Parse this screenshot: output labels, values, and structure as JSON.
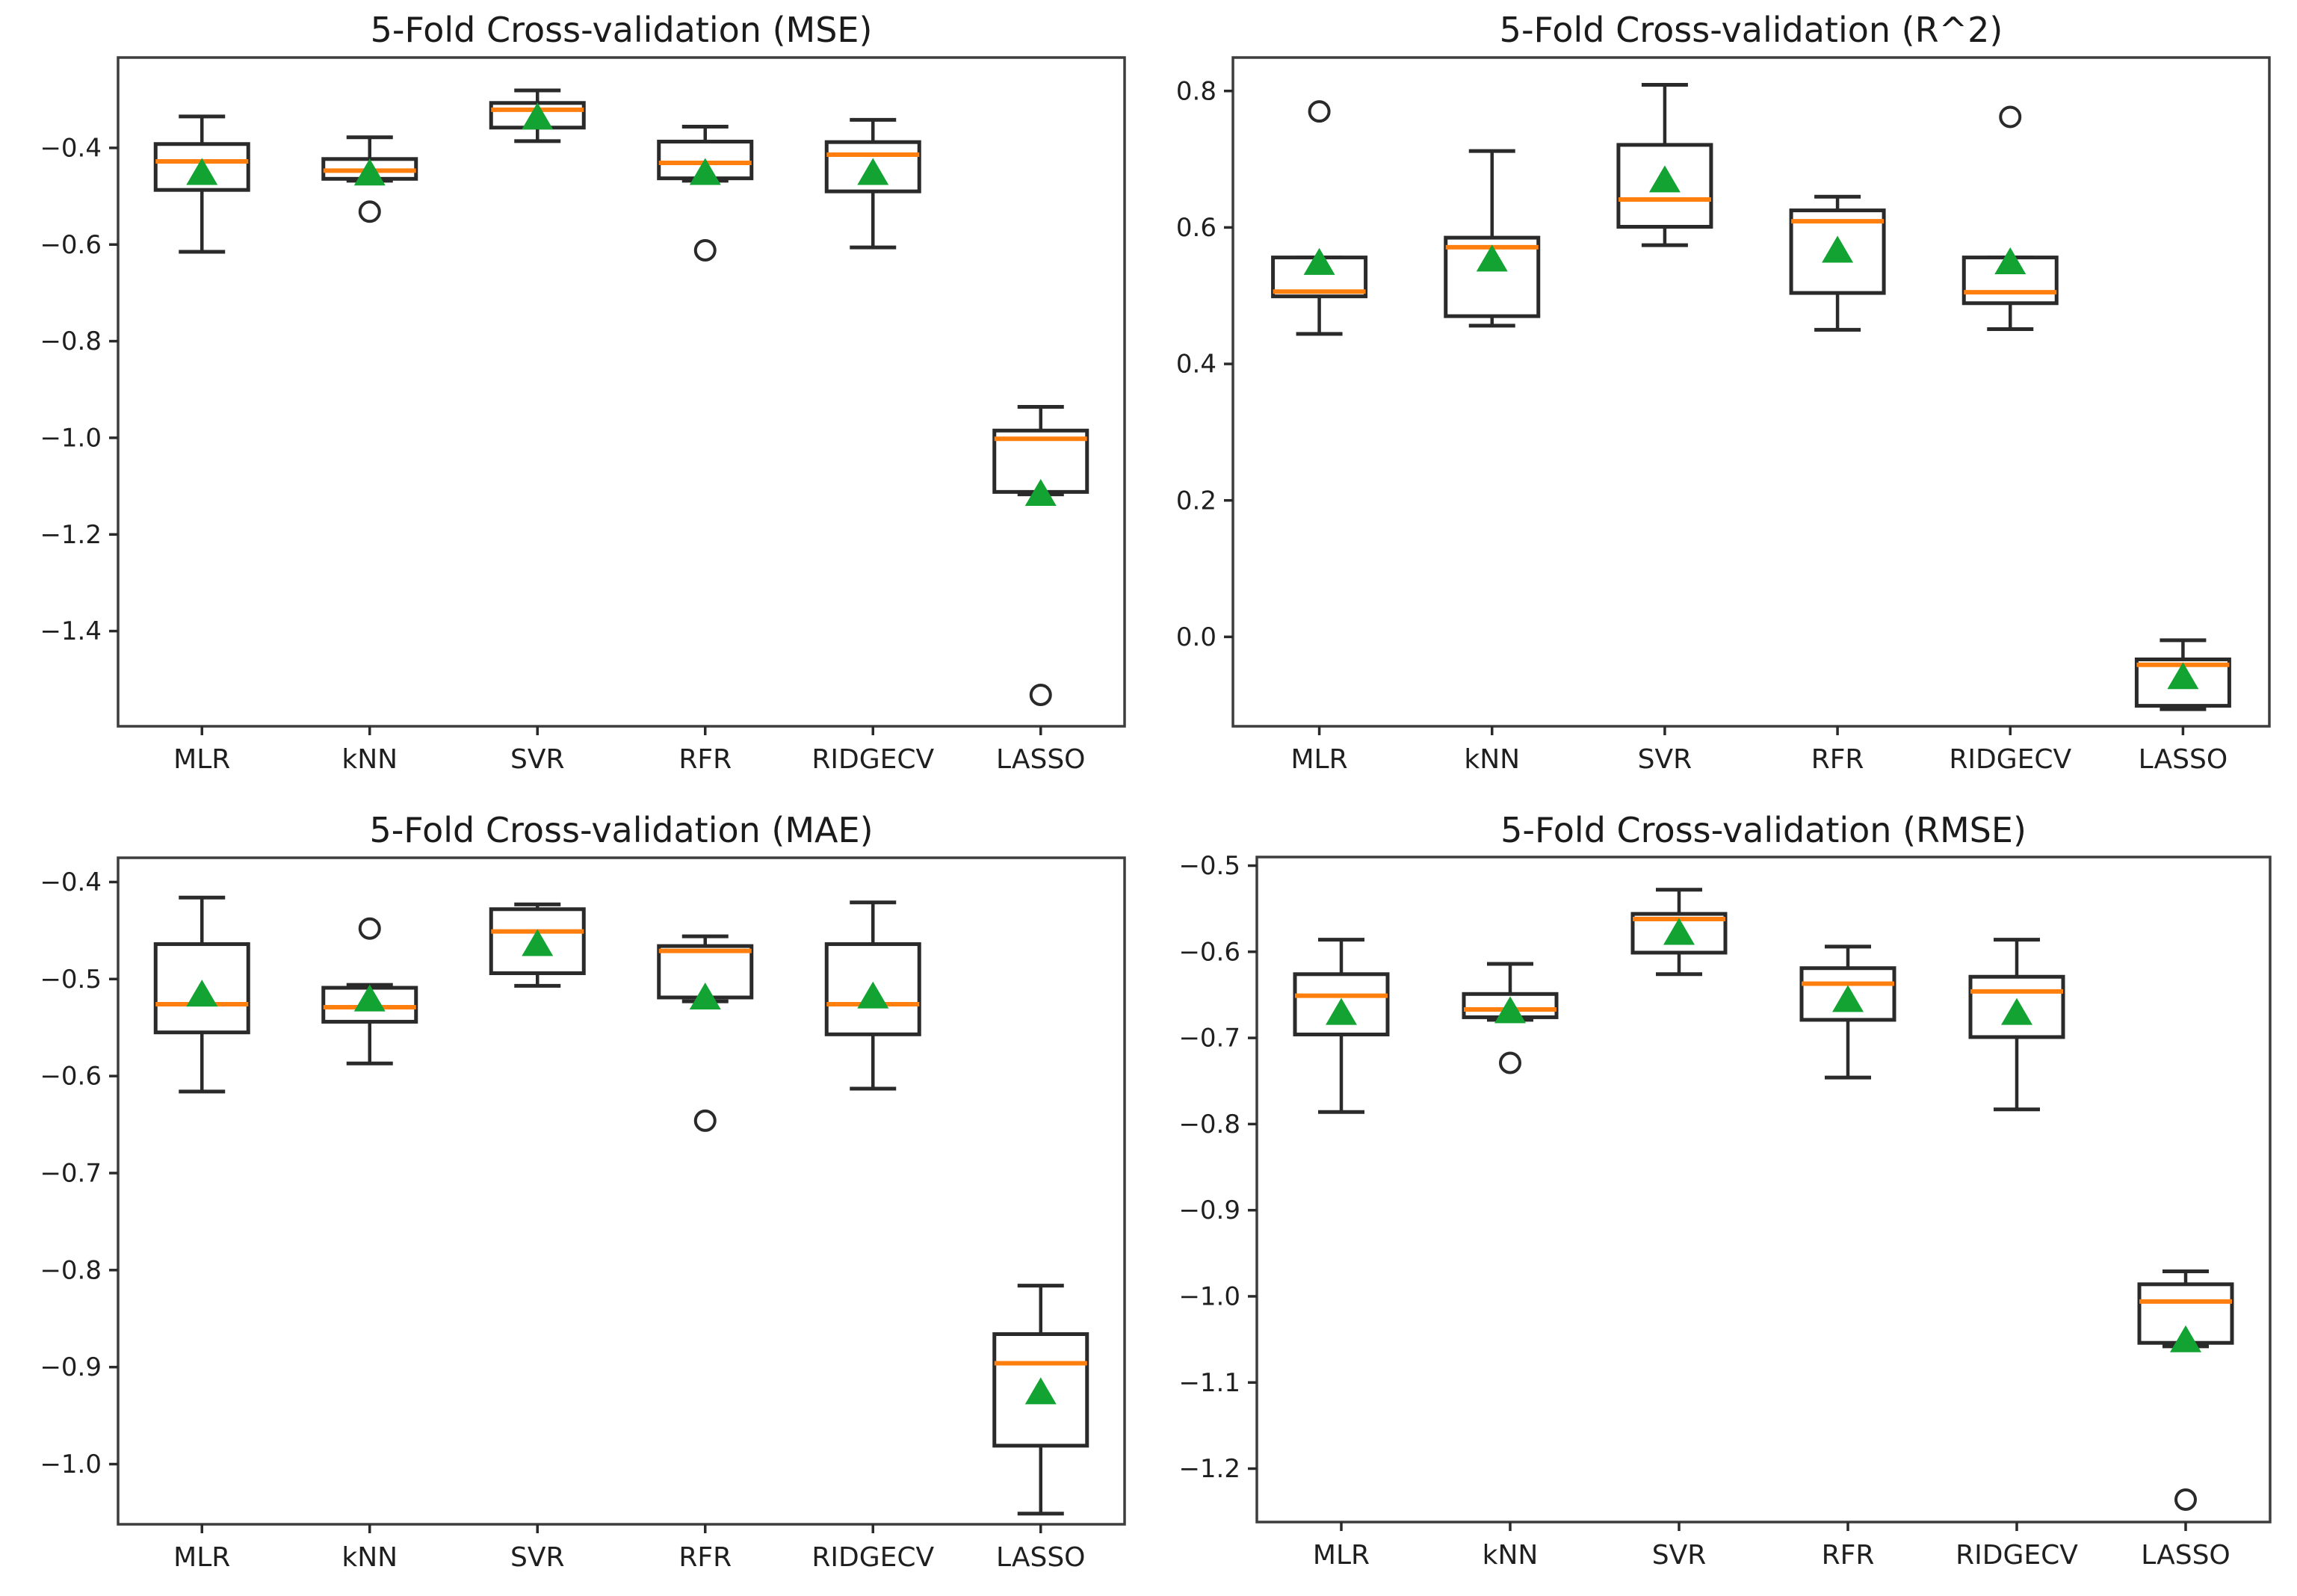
{
  "page": {
    "background": "#ffffff"
  },
  "colors": {
    "box_edge": "#2a2a2a",
    "whisker": "#2a2a2a",
    "median": "#ff7f0e",
    "mean_marker": "#13a333",
    "flier_edge": "#2a2a2a",
    "axis_frame": "#3d3d3d",
    "tick": "#2a2a2a",
    "text": "#1b1b1b"
  },
  "chart_data": [
    {
      "type": "box",
      "title": "5-Fold Cross-validation (MSE)",
      "categories": [
        "MLR",
        "kNN",
        "SVR",
        "RFR",
        "RIDGECV",
        "LASSO"
      ],
      "ylabel": "",
      "xlabel": "",
      "grid": false,
      "legend": "none",
      "ylim": [
        -1.597,
        -0.213
      ],
      "yticks": [
        {
          "value": -0.4,
          "label": "−0.4"
        },
        {
          "value": -0.6,
          "label": "−0.6"
        },
        {
          "value": -0.8,
          "label": "−0.8"
        },
        {
          "value": -1.0,
          "label": "−1.0"
        },
        {
          "value": -1.2,
          "label": "−1.2"
        },
        {
          "value": -1.4,
          "label": "−1.4"
        }
      ],
      "boxes": [
        {
          "whislo": -0.615,
          "q1": -0.487,
          "med": -0.428,
          "q3": -0.392,
          "whishi": -0.335,
          "mean": -0.452,
          "fliers": []
        },
        {
          "whislo": -0.468,
          "q1": -0.464,
          "med": -0.447,
          "q3": -0.423,
          "whishi": -0.378,
          "mean": -0.453,
          "fliers": [
            -0.532
          ]
        },
        {
          "whislo": -0.386,
          "q1": -0.358,
          "med": -0.321,
          "q3": -0.307,
          "whishi": -0.281,
          "mean": -0.337,
          "fliers": []
        },
        {
          "whislo": -0.468,
          "q1": -0.463,
          "med": -0.431,
          "q3": -0.387,
          "whishi": -0.356,
          "mean": -0.452,
          "fliers": [
            -0.612
          ]
        },
        {
          "whislo": -0.606,
          "q1": -0.49,
          "med": -0.414,
          "q3": -0.388,
          "whishi": -0.342,
          "mean": -0.452,
          "fliers": []
        },
        {
          "whislo": -1.117,
          "q1": -1.112,
          "med": -1.002,
          "q3": -0.985,
          "whishi": -0.936,
          "mean": -1.116,
          "fliers": [
            -1.532
          ]
        }
      ]
    },
    {
      "type": "box",
      "title": "5-Fold Cross-validation (R^2)",
      "categories": [
        "MLR",
        "kNN",
        "SVR",
        "RFR",
        "RIDGECV",
        "LASSO"
      ],
      "ylabel": "",
      "xlabel": "",
      "grid": false,
      "legend": "none",
      "ylim": [
        -0.131,
        0.849
      ],
      "yticks": [
        {
          "value": 0.8,
          "label": "0.8"
        },
        {
          "value": 0.6,
          "label": "0.6"
        },
        {
          "value": 0.4,
          "label": "0.4"
        },
        {
          "value": 0.2,
          "label": "0.2"
        },
        {
          "value": 0.0,
          "label": "0.0"
        }
      ],
      "boxes": [
        {
          "whislo": 0.444,
          "q1": 0.499,
          "med": 0.506,
          "q3": 0.556,
          "whishi": 0.556,
          "mean": 0.548,
          "fliers": [
            0.77
          ]
        },
        {
          "whislo": 0.456,
          "q1": 0.47,
          "med": 0.571,
          "q3": 0.585,
          "whishi": 0.712,
          "mean": 0.553,
          "fliers": []
        },
        {
          "whislo": 0.574,
          "q1": 0.601,
          "med": 0.641,
          "q3": 0.721,
          "whishi": 0.809,
          "mean": 0.669,
          "fliers": []
        },
        {
          "whislo": 0.45,
          "q1": 0.504,
          "med": 0.609,
          "q3": 0.625,
          "whishi": 0.645,
          "mean": 0.566,
          "fliers": []
        },
        {
          "whislo": 0.451,
          "q1": 0.489,
          "med": 0.505,
          "q3": 0.556,
          "whishi": 0.556,
          "mean": 0.549,
          "fliers": [
            0.762
          ]
        },
        {
          "whislo": -0.106,
          "q1": -0.101,
          "med": -0.041,
          "q3": -0.033,
          "whishi": -0.005,
          "mean": -0.059,
          "fliers": []
        }
      ]
    },
    {
      "type": "box",
      "title": "5-Fold Cross-validation (MAE)",
      "categories": [
        "MLR",
        "kNN",
        "SVR",
        "RFR",
        "RIDGECV",
        "LASSO"
      ],
      "ylabel": "",
      "xlabel": "",
      "grid": false,
      "legend": "none",
      "ylim": [
        -1.062,
        -0.375
      ],
      "yticks": [
        {
          "value": -0.4,
          "label": "−0.4"
        },
        {
          "value": -0.5,
          "label": "−0.5"
        },
        {
          "value": -0.6,
          "label": "−0.6"
        },
        {
          "value": -0.7,
          "label": "−0.7"
        },
        {
          "value": -0.8,
          "label": "−0.8"
        },
        {
          "value": -0.9,
          "label": "−0.9"
        },
        {
          "value": -1.0,
          "label": "−1.0"
        }
      ],
      "boxes": [
        {
          "whislo": -0.616,
          "q1": -0.555,
          "med": -0.526,
          "q3": -0.464,
          "whishi": -0.416,
          "mean": -0.516,
          "fliers": []
        },
        {
          "whislo": -0.587,
          "q1": -0.544,
          "med": -0.529,
          "q3": -0.509,
          "whishi": -0.506,
          "mean": -0.521,
          "fliers": [
            -0.448
          ]
        },
        {
          "whislo": -0.507,
          "q1": -0.494,
          "med": -0.451,
          "q3": -0.428,
          "whishi": -0.423,
          "mean": -0.464,
          "fliers": []
        },
        {
          "whislo": -0.523,
          "q1": -0.519,
          "med": -0.471,
          "q3": -0.466,
          "whishi": -0.456,
          "mean": -0.519,
          "fliers": [
            -0.646
          ]
        },
        {
          "whislo": -0.613,
          "q1": -0.557,
          "med": -0.526,
          "q3": -0.464,
          "whishi": -0.421,
          "mean": -0.518,
          "fliers": []
        },
        {
          "whislo": -1.051,
          "q1": -0.981,
          "med": -0.896,
          "q3": -0.866,
          "whishi": -0.816,
          "mean": -0.926,
          "fliers": []
        }
      ]
    },
    {
      "type": "box",
      "title": "5-Fold Cross-validation (RMSE)",
      "categories": [
        "MLR",
        "kNN",
        "SVR",
        "RFR",
        "RIDGECV",
        "LASSO"
      ],
      "ylabel": "",
      "xlabel": "",
      "grid": false,
      "legend": "none",
      "ylim": [
        -1.262,
        -0.49
      ],
      "yticks": [
        {
          "value": -0.5,
          "label": "−0.5"
        },
        {
          "value": -0.6,
          "label": "−0.6"
        },
        {
          "value": -0.7,
          "label": "−0.7"
        },
        {
          "value": -0.8,
          "label": "−0.8"
        },
        {
          "value": -0.9,
          "label": "−0.9"
        },
        {
          "value": -1.0,
          "label": "−1.0"
        },
        {
          "value": -1.1,
          "label": "−1.1"
        },
        {
          "value": -1.2,
          "label": "−1.2"
        }
      ],
      "boxes": [
        {
          "whislo": -0.786,
          "q1": -0.696,
          "med": -0.651,
          "q3": -0.626,
          "whishi": -0.586,
          "mean": -0.671,
          "fliers": []
        },
        {
          "whislo": -0.679,
          "q1": -0.676,
          "med": -0.667,
          "q3": -0.649,
          "whishi": -0.614,
          "mean": -0.669,
          "fliers": [
            -0.729
          ]
        },
        {
          "whislo": -0.626,
          "q1": -0.601,
          "med": -0.562,
          "q3": -0.556,
          "whishi": -0.528,
          "mean": -0.578,
          "fliers": []
        },
        {
          "whislo": -0.746,
          "q1": -0.679,
          "med": -0.637,
          "q3": -0.619,
          "whishi": -0.594,
          "mean": -0.656,
          "fliers": []
        },
        {
          "whislo": -0.783,
          "q1": -0.699,
          "med": -0.646,
          "q3": -0.629,
          "whishi": -0.586,
          "mean": -0.671,
          "fliers": []
        },
        {
          "whislo": -1.058,
          "q1": -1.054,
          "med": -1.006,
          "q3": -0.986,
          "whishi": -0.971,
          "mean": -1.051,
          "fliers": [
            -1.236
          ]
        }
      ]
    }
  ]
}
